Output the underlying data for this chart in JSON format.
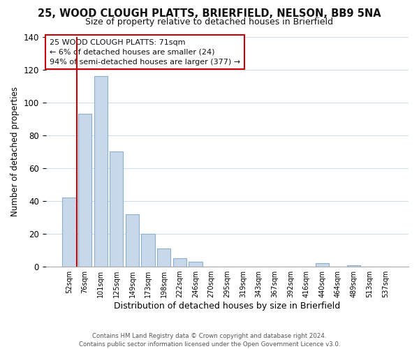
{
  "title": "25, WOOD CLOUGH PLATTS, BRIERFIELD, NELSON, BB9 5NA",
  "subtitle": "Size of property relative to detached houses in Brierfield",
  "xlabel": "Distribution of detached houses by size in Brierfield",
  "ylabel": "Number of detached properties",
  "categories": [
    "52sqm",
    "76sqm",
    "101sqm",
    "125sqm",
    "149sqm",
    "173sqm",
    "198sqm",
    "222sqm",
    "246sqm",
    "270sqm",
    "295sqm",
    "319sqm",
    "343sqm",
    "367sqm",
    "392sqm",
    "416sqm",
    "440sqm",
    "464sqm",
    "489sqm",
    "513sqm",
    "537sqm"
  ],
  "values": [
    42,
    93,
    116,
    70,
    32,
    20,
    11,
    5,
    3,
    0,
    0,
    0,
    0,
    0,
    0,
    0,
    2,
    0,
    1,
    0,
    0
  ],
  "bar_color": "#c8d8eb",
  "bar_edgecolor": "#8ab0cc",
  "vline_color": "#cc0000",
  "vline_x_bar_index": 0,
  "ylim": [
    0,
    140
  ],
  "yticks": [
    0,
    20,
    40,
    60,
    80,
    100,
    120,
    140
  ],
  "annotation_lines": [
    "25 WOOD CLOUGH PLATTS: 71sqm",
    "← 6% of detached houses are smaller (24)",
    "94% of semi-detached houses are larger (377) →"
  ],
  "footer_lines": [
    "Contains HM Land Registry data © Crown copyright and database right 2024.",
    "Contains public sector information licensed under the Open Government Licence v3.0."
  ],
  "background_color": "#ffffff",
  "grid_color": "#ccddee",
  "ann_box_color": "#cc0000",
  "ann_text_fontsize": 8.0,
  "title_fontsize": 10.5,
  "subtitle_fontsize": 9.0,
  "ylabel_fontsize": 8.5,
  "xlabel_fontsize": 9.0,
  "xtick_fontsize": 7.0,
  "ytick_fontsize": 8.5
}
